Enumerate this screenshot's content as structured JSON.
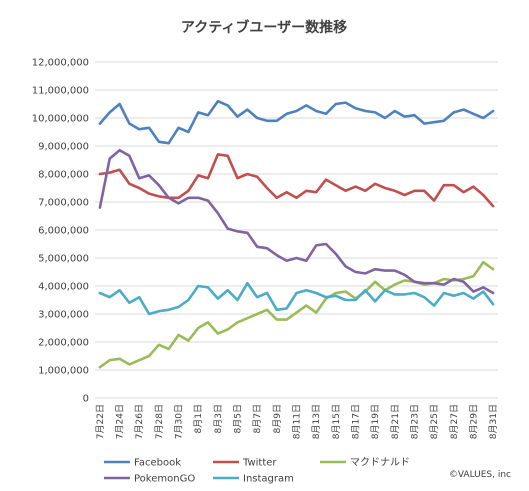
{
  "chart_data": {
    "type": "line",
    "title": "アクティブユーザー数推移",
    "credit": "©VALUES, inc",
    "ylim": [
      0,
      12000000
    ],
    "y_tick_labels": [
      "0",
      "1,000,000",
      "2,000,000",
      "3,000,000",
      "4,000,000",
      "5,000,000",
      "6,000,000",
      "7,000,000",
      "8,000,000",
      "9,000,000",
      "10,000,000",
      "11,000,000",
      "12,000,000"
    ],
    "x_tick_labels": [
      "7月22日",
      "7月24日",
      "7月26日",
      "7月28日",
      "7月30日",
      "8月1日",
      "8月3日",
      "8月5日",
      "8月7日",
      "8月9日",
      "8月11日",
      "8月13日",
      "8月15日",
      "8月17日",
      "8月19日",
      "8月21日",
      "8月23日",
      "8月25日",
      "8月27日",
      "8月29日",
      "8月31日"
    ],
    "x": [
      "7/22",
      "7/23",
      "7/24",
      "7/25",
      "7/26",
      "7/27",
      "7/28",
      "7/29",
      "7/30",
      "7/31",
      "8/1",
      "8/2",
      "8/3",
      "8/4",
      "8/5",
      "8/6",
      "8/7",
      "8/8",
      "8/9",
      "8/10",
      "8/11",
      "8/12",
      "8/13",
      "8/14",
      "8/15",
      "8/16",
      "8/17",
      "8/18",
      "8/19",
      "8/20",
      "8/21",
      "8/22",
      "8/23",
      "8/24",
      "8/25",
      "8/26",
      "8/27",
      "8/28",
      "8/29",
      "8/30",
      "8/31"
    ],
    "grid": true,
    "legend_position": "bottom",
    "series": [
      {
        "name": "Facebook",
        "color": "#4f81bd",
        "values": [
          9800000,
          10200000,
          10500000,
          9800000,
          9600000,
          9650000,
          9150000,
          9100000,
          9650000,
          9500000,
          10200000,
          10100000,
          10600000,
          10450000,
          10050000,
          10300000,
          10000000,
          9900000,
          9900000,
          10150000,
          10250000,
          10450000,
          10250000,
          10150000,
          10500000,
          10550000,
          10350000,
          10250000,
          10200000,
          10000000,
          10250000,
          10050000,
          10100000,
          9800000,
          9850000,
          9900000,
          10200000,
          10300000,
          10150000,
          10000000,
          10250000
        ]
      },
      {
        "name": "Twitter",
        "color": "#c0504d",
        "values": [
          8000000,
          8050000,
          8150000,
          7650000,
          7500000,
          7300000,
          7200000,
          7150000,
          7150000,
          7400000,
          7950000,
          7850000,
          8700000,
          8650000,
          7850000,
          8000000,
          7900000,
          7500000,
          7150000,
          7350000,
          7150000,
          7400000,
          7350000,
          7800000,
          7600000,
          7400000,
          7550000,
          7400000,
          7650000,
          7500000,
          7400000,
          7250000,
          7400000,
          7400000,
          7050000,
          7600000,
          7600000,
          7350000,
          7550000,
          7250000,
          6850000
        ]
      },
      {
        "name": "マクドナルド",
        "color": "#9bbb59",
        "values": [
          1100000,
          1350000,
          1400000,
          1200000,
          1350000,
          1500000,
          1900000,
          1750000,
          2250000,
          2050000,
          2500000,
          2700000,
          2300000,
          2450000,
          2700000,
          2850000,
          3000000,
          3150000,
          2800000,
          2800000,
          3050000,
          3300000,
          3050000,
          3550000,
          3750000,
          3800000,
          3550000,
          3800000,
          4150000,
          3850000,
          4050000,
          4200000,
          4150000,
          4050000,
          4100000,
          4250000,
          4200000,
          4250000,
          4350000,
          4850000,
          4600000
        ]
      },
      {
        "name": "PokemonGO",
        "color": "#8064a2",
        "values": [
          6800000,
          8550000,
          8850000,
          8650000,
          7850000,
          7950000,
          7600000,
          7150000,
          6950000,
          7150000,
          7150000,
          7050000,
          6600000,
          6050000,
          5950000,
          5900000,
          5400000,
          5350000,
          5100000,
          4900000,
          5000000,
          4900000,
          5450000,
          5500000,
          5150000,
          4700000,
          4500000,
          4450000,
          4600000,
          4550000,
          4550000,
          4400000,
          4150000,
          4100000,
          4100000,
          4050000,
          4250000,
          4150000,
          3800000,
          3950000,
          3750000
        ]
      },
      {
        "name": "Instagram",
        "color": "#4bacc6",
        "values": [
          3750000,
          3600000,
          3850000,
          3400000,
          3600000,
          3000000,
          3100000,
          3150000,
          3250000,
          3500000,
          4000000,
          3950000,
          3550000,
          3850000,
          3500000,
          4100000,
          3600000,
          3750000,
          3150000,
          3200000,
          3750000,
          3850000,
          3750000,
          3600000,
          3650000,
          3500000,
          3500000,
          3850000,
          3450000,
          3850000,
          3700000,
          3700000,
          3750000,
          3600000,
          3300000,
          3750000,
          3650000,
          3750000,
          3550000,
          3800000,
          3350000
        ]
      }
    ]
  }
}
